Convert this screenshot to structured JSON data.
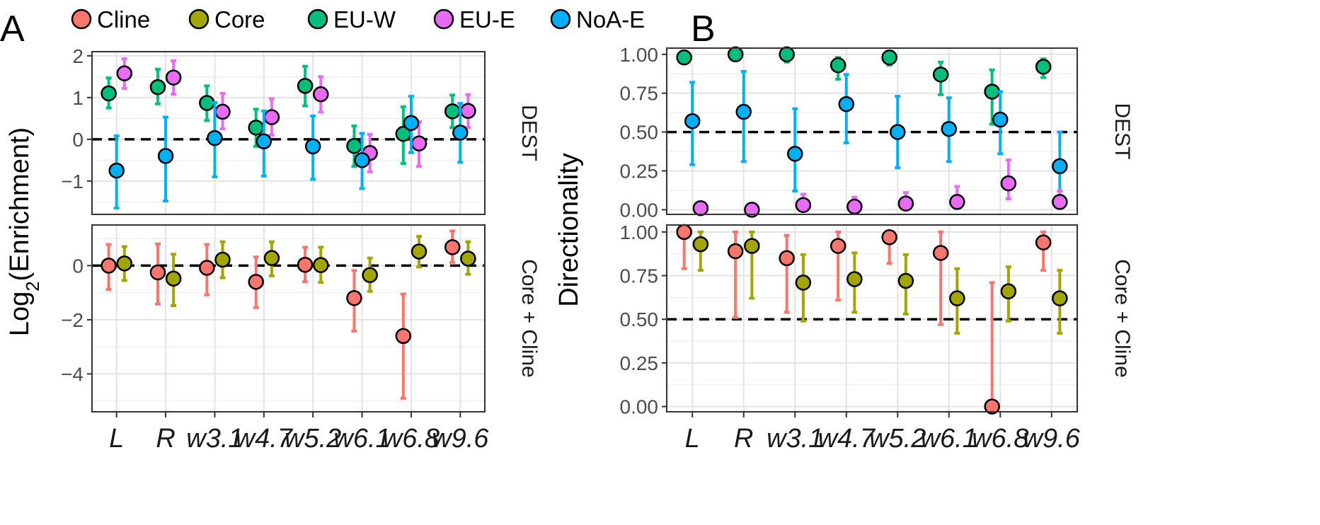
{
  "panel_labels": [
    "A",
    "B"
  ],
  "legend": [
    {
      "name": "Cline",
      "color": "#F8766D"
    },
    {
      "name": "Core",
      "color": "#A3A500"
    },
    {
      "name": "EU-W",
      "color": "#00BF7D"
    },
    {
      "name": "EU-E",
      "color": "#E76BF3"
    },
    {
      "name": "NoA-E",
      "color": "#00B0F6"
    }
  ],
  "chart_data": [
    {
      "type": "scatter",
      "panel": "A",
      "ylabel_pre": "Log",
      "ylabel_sub": "2",
      "ylabel_post": "(Enrichment)",
      "categories": [
        "L",
        "R",
        "w3.1",
        "w4.7",
        "w5.2",
        "w6.1",
        "w6.8",
        "w9.6"
      ],
      "facets": [
        {
          "strip": "DEST",
          "ylim": [
            -1.8,
            2.1
          ],
          "yticks": [
            2,
            1,
            0,
            -1
          ],
          "yticklabels": [
            "2",
            "1",
            "0",
            "−1"
          ],
          "reference_line": 0,
          "series": [
            {
              "name": "EU-W",
              "color": "#00BF7D",
              "offset": -0.16,
              "values": [
                1.1,
                1.25,
                0.87,
                0.28,
                1.28,
                -0.16,
                0.13,
                0.67
              ],
              "lower": [
                0.75,
                0.85,
                0.45,
                -0.17,
                0.8,
                -0.65,
                -0.58,
                0.28
              ],
              "upper": [
                1.47,
                1.68,
                1.28,
                0.72,
                1.75,
                0.32,
                0.78,
                1.06
              ]
            },
            {
              "name": "EU-E",
              "color": "#E76BF3",
              "offset": 0.16,
              "values": [
                1.58,
                1.48,
                0.66,
                0.53,
                1.08,
                -0.33,
                -0.1,
                0.68
              ],
              "lower": [
                1.22,
                1.08,
                0.25,
                0.1,
                0.65,
                -0.78,
                -0.65,
                0.28
              ],
              "upper": [
                1.93,
                1.88,
                1.1,
                0.97,
                1.5,
                0.12,
                0.42,
                1.07
              ]
            },
            {
              "name": "NoA-E",
              "color": "#00B0F6",
              "offset": 0.0,
              "values": [
                -0.75,
                -0.4,
                0.03,
                -0.05,
                -0.17,
                -0.5,
                0.39,
                0.16
              ],
              "lower": [
                -1.65,
                -1.48,
                -0.9,
                -0.88,
                -0.96,
                -1.18,
                -0.32,
                -0.55
              ],
              "upper": [
                0.08,
                0.53,
                0.88,
                0.68,
                0.56,
                0.14,
                1.03,
                0.86
              ]
            }
          ]
        },
        {
          "strip": "Core + Cline",
          "ylim": [
            -5.4,
            1.5
          ],
          "yticks": [
            0,
            -2,
            -4
          ],
          "yticklabels": [
            "0",
            "−2",
            "−4"
          ],
          "reference_line": 0,
          "series": [
            {
              "name": "Cline",
              "color": "#F8766D",
              "offset": -0.16,
              "values": [
                0.0,
                -0.25,
                -0.08,
                -0.6,
                0.03,
                -1.2,
                -2.6,
                0.68
              ],
              "lower": [
                -0.88,
                -1.42,
                -1.08,
                -1.55,
                -0.6,
                -2.42,
                -4.9,
                0.12
              ],
              "upper": [
                0.78,
                0.8,
                0.78,
                0.32,
                0.68,
                -0.18,
                -1.05,
                1.28
              ]
            },
            {
              "name": "Core",
              "color": "#A3A500",
              "offset": 0.16,
              "values": [
                0.08,
                -0.48,
                0.22,
                0.28,
                0.02,
                -0.35,
                0.52,
                0.26
              ],
              "lower": [
                -0.55,
                -1.48,
                -0.45,
                -0.38,
                -0.62,
                -0.95,
                -0.05,
                -0.32
              ],
              "upper": [
                0.7,
                0.42,
                0.88,
                0.88,
                0.68,
                0.28,
                1.08,
                0.88
              ]
            }
          ]
        }
      ]
    },
    {
      "type": "scatter",
      "panel": "B",
      "ylabel": "Directionality",
      "categories": [
        "L",
        "R",
        "w3.1",
        "w4.7",
        "w5.2",
        "w6.1",
        "w6.8",
        "w9.6"
      ],
      "facets": [
        {
          "strip": "DEST",
          "ylim": [
            -0.03,
            1.04
          ],
          "yticks": [
            1.0,
            0.75,
            0.5,
            0.25,
            0.0
          ],
          "yticklabels": [
            "1.00",
            "0.75",
            "0.50",
            "0.25",
            "0.00"
          ],
          "reference_line": 0.5,
          "series": [
            {
              "name": "EU-W",
              "color": "#00BF7D",
              "offset": -0.16,
              "values": [
                0.98,
                1.0,
                1.0,
                0.93,
                0.98,
                0.87,
                0.76,
                0.92
              ],
              "lower": [
                0.95,
                0.99,
                0.95,
                0.84,
                0.93,
                0.74,
                0.55,
                0.85
              ],
              "upper": [
                1.0,
                1.0,
                1.0,
                0.98,
                1.0,
                0.95,
                0.9,
                0.97
              ]
            },
            {
              "name": "NoA-E",
              "color": "#00B0F6",
              "offset": 0.0,
              "values": [
                0.57,
                0.63,
                0.36,
                0.68,
                0.5,
                0.52,
                0.58,
                0.28
              ],
              "lower": [
                0.29,
                0.31,
                0.12,
                0.43,
                0.27,
                0.31,
                0.36,
                0.12
              ],
              "upper": [
                0.82,
                0.89,
                0.65,
                0.87,
                0.73,
                0.72,
                0.76,
                0.5
              ],
              "offsets": [
                0.0,
                0.0,
                0.0,
                0.0,
                0.0,
                0.0,
                0.0,
                0.16
              ]
            },
            {
              "name": "EU-E",
              "color": "#E76BF3",
              "offset": 0.16,
              "values": [
                0.01,
                0.0,
                0.03,
                0.02,
                0.04,
                0.05,
                0.17,
                0.05
              ],
              "lower": [
                0.0,
                0.0,
                0.0,
                0.0,
                0.0,
                0.01,
                0.07,
                0.02
              ],
              "upper": [
                0.01,
                0.0,
                0.1,
                0.08,
                0.11,
                0.15,
                0.32,
                0.12
              ],
              "offsets": [
                0.16,
                0.16,
                0.16,
                0.16,
                0.16,
                0.16,
                0.16,
                0.16
              ]
            }
          ]
        },
        {
          "strip": "Core + Cline",
          "ylim": [
            -0.03,
            1.04
          ],
          "yticks": [
            1.0,
            0.75,
            0.5,
            0.25,
            0.0
          ],
          "yticklabels": [
            "1.00",
            "0.75",
            "0.50",
            "0.25",
            "0.00"
          ],
          "reference_line": 0.5,
          "series": [
            {
              "name": "Cline",
              "color": "#F8766D",
              "offset": -0.16,
              "values": [
                1.0,
                0.89,
                0.85,
                0.92,
                0.97,
                0.88,
                0.0,
                0.94
              ],
              "lower": [
                0.79,
                0.51,
                0.54,
                0.61,
                0.82,
                0.47,
                0.0,
                0.78
              ],
              "upper": [
                1.0,
                1.0,
                0.98,
                1.0,
                1.0,
                1.0,
                0.71,
                1.0
              ]
            },
            {
              "name": "Core",
              "color": "#A3A500",
              "offset": 0.16,
              "values": [
                0.93,
                0.92,
                0.71,
                0.73,
                0.72,
                0.62,
                0.66,
                0.62
              ],
              "lower": [
                0.78,
                0.62,
                0.49,
                0.54,
                0.53,
                0.42,
                0.49,
                0.42
              ],
              "upper": [
                1.0,
                1.0,
                0.87,
                0.88,
                0.87,
                0.79,
                0.8,
                0.78
              ]
            }
          ]
        }
      ]
    }
  ]
}
